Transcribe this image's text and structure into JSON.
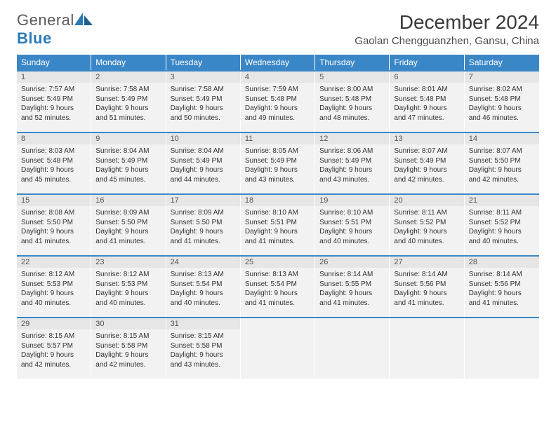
{
  "brand": {
    "part1": "General",
    "part2": "Blue"
  },
  "title": "December 2024",
  "location": "Gaolan Chengguanzhen, Gansu, China",
  "colors": {
    "header_bg": "#3a87c7",
    "header_text": "#ffffff",
    "cell_bg": "#f2f2f2",
    "daynum_bg": "#e6e6e6",
    "week_border": "#3a87c7",
    "logo_blue": "#2a7ab9",
    "logo_gray": "#5a5a5a"
  },
  "typography": {
    "title_fontsize": 28,
    "location_fontsize": 15,
    "dayheader_fontsize": 12,
    "body_fontsize": 10
  },
  "day_headers": [
    "Sunday",
    "Monday",
    "Tuesday",
    "Wednesday",
    "Thursday",
    "Friday",
    "Saturday"
  ],
  "weeks": [
    [
      {
        "n": "1",
        "sr": "Sunrise: 7:57 AM",
        "ss": "Sunset: 5:49 PM",
        "dl": "Daylight: 9 hours and 52 minutes."
      },
      {
        "n": "2",
        "sr": "Sunrise: 7:58 AM",
        "ss": "Sunset: 5:49 PM",
        "dl": "Daylight: 9 hours and 51 minutes."
      },
      {
        "n": "3",
        "sr": "Sunrise: 7:58 AM",
        "ss": "Sunset: 5:49 PM",
        "dl": "Daylight: 9 hours and 50 minutes."
      },
      {
        "n": "4",
        "sr": "Sunrise: 7:59 AM",
        "ss": "Sunset: 5:48 PM",
        "dl": "Daylight: 9 hours and 49 minutes."
      },
      {
        "n": "5",
        "sr": "Sunrise: 8:00 AM",
        "ss": "Sunset: 5:48 PM",
        "dl": "Daylight: 9 hours and 48 minutes."
      },
      {
        "n": "6",
        "sr": "Sunrise: 8:01 AM",
        "ss": "Sunset: 5:48 PM",
        "dl": "Daylight: 9 hours and 47 minutes."
      },
      {
        "n": "7",
        "sr": "Sunrise: 8:02 AM",
        "ss": "Sunset: 5:48 PM",
        "dl": "Daylight: 9 hours and 46 minutes."
      }
    ],
    [
      {
        "n": "8",
        "sr": "Sunrise: 8:03 AM",
        "ss": "Sunset: 5:48 PM",
        "dl": "Daylight: 9 hours and 45 minutes."
      },
      {
        "n": "9",
        "sr": "Sunrise: 8:04 AM",
        "ss": "Sunset: 5:49 PM",
        "dl": "Daylight: 9 hours and 45 minutes."
      },
      {
        "n": "10",
        "sr": "Sunrise: 8:04 AM",
        "ss": "Sunset: 5:49 PM",
        "dl": "Daylight: 9 hours and 44 minutes."
      },
      {
        "n": "11",
        "sr": "Sunrise: 8:05 AM",
        "ss": "Sunset: 5:49 PM",
        "dl": "Daylight: 9 hours and 43 minutes."
      },
      {
        "n": "12",
        "sr": "Sunrise: 8:06 AM",
        "ss": "Sunset: 5:49 PM",
        "dl": "Daylight: 9 hours and 43 minutes."
      },
      {
        "n": "13",
        "sr": "Sunrise: 8:07 AM",
        "ss": "Sunset: 5:49 PM",
        "dl": "Daylight: 9 hours and 42 minutes."
      },
      {
        "n": "14",
        "sr": "Sunrise: 8:07 AM",
        "ss": "Sunset: 5:50 PM",
        "dl": "Daylight: 9 hours and 42 minutes."
      }
    ],
    [
      {
        "n": "15",
        "sr": "Sunrise: 8:08 AM",
        "ss": "Sunset: 5:50 PM",
        "dl": "Daylight: 9 hours and 41 minutes."
      },
      {
        "n": "16",
        "sr": "Sunrise: 8:09 AM",
        "ss": "Sunset: 5:50 PM",
        "dl": "Daylight: 9 hours and 41 minutes."
      },
      {
        "n": "17",
        "sr": "Sunrise: 8:09 AM",
        "ss": "Sunset: 5:50 PM",
        "dl": "Daylight: 9 hours and 41 minutes."
      },
      {
        "n": "18",
        "sr": "Sunrise: 8:10 AM",
        "ss": "Sunset: 5:51 PM",
        "dl": "Daylight: 9 hours and 41 minutes."
      },
      {
        "n": "19",
        "sr": "Sunrise: 8:10 AM",
        "ss": "Sunset: 5:51 PM",
        "dl": "Daylight: 9 hours and 40 minutes."
      },
      {
        "n": "20",
        "sr": "Sunrise: 8:11 AM",
        "ss": "Sunset: 5:52 PM",
        "dl": "Daylight: 9 hours and 40 minutes."
      },
      {
        "n": "21",
        "sr": "Sunrise: 8:11 AM",
        "ss": "Sunset: 5:52 PM",
        "dl": "Daylight: 9 hours and 40 minutes."
      }
    ],
    [
      {
        "n": "22",
        "sr": "Sunrise: 8:12 AM",
        "ss": "Sunset: 5:53 PM",
        "dl": "Daylight: 9 hours and 40 minutes."
      },
      {
        "n": "23",
        "sr": "Sunrise: 8:12 AM",
        "ss": "Sunset: 5:53 PM",
        "dl": "Daylight: 9 hours and 40 minutes."
      },
      {
        "n": "24",
        "sr": "Sunrise: 8:13 AM",
        "ss": "Sunset: 5:54 PM",
        "dl": "Daylight: 9 hours and 40 minutes."
      },
      {
        "n": "25",
        "sr": "Sunrise: 8:13 AM",
        "ss": "Sunset: 5:54 PM",
        "dl": "Daylight: 9 hours and 41 minutes."
      },
      {
        "n": "26",
        "sr": "Sunrise: 8:14 AM",
        "ss": "Sunset: 5:55 PM",
        "dl": "Daylight: 9 hours and 41 minutes."
      },
      {
        "n": "27",
        "sr": "Sunrise: 8:14 AM",
        "ss": "Sunset: 5:56 PM",
        "dl": "Daylight: 9 hours and 41 minutes."
      },
      {
        "n": "28",
        "sr": "Sunrise: 8:14 AM",
        "ss": "Sunset: 5:56 PM",
        "dl": "Daylight: 9 hours and 41 minutes."
      }
    ],
    [
      {
        "n": "29",
        "sr": "Sunrise: 8:15 AM",
        "ss": "Sunset: 5:57 PM",
        "dl": "Daylight: 9 hours and 42 minutes."
      },
      {
        "n": "30",
        "sr": "Sunrise: 8:15 AM",
        "ss": "Sunset: 5:58 PM",
        "dl": "Daylight: 9 hours and 42 minutes."
      },
      {
        "n": "31",
        "sr": "Sunrise: 8:15 AM",
        "ss": "Sunset: 5:58 PM",
        "dl": "Daylight: 9 hours and 43 minutes."
      },
      null,
      null,
      null,
      null
    ]
  ]
}
